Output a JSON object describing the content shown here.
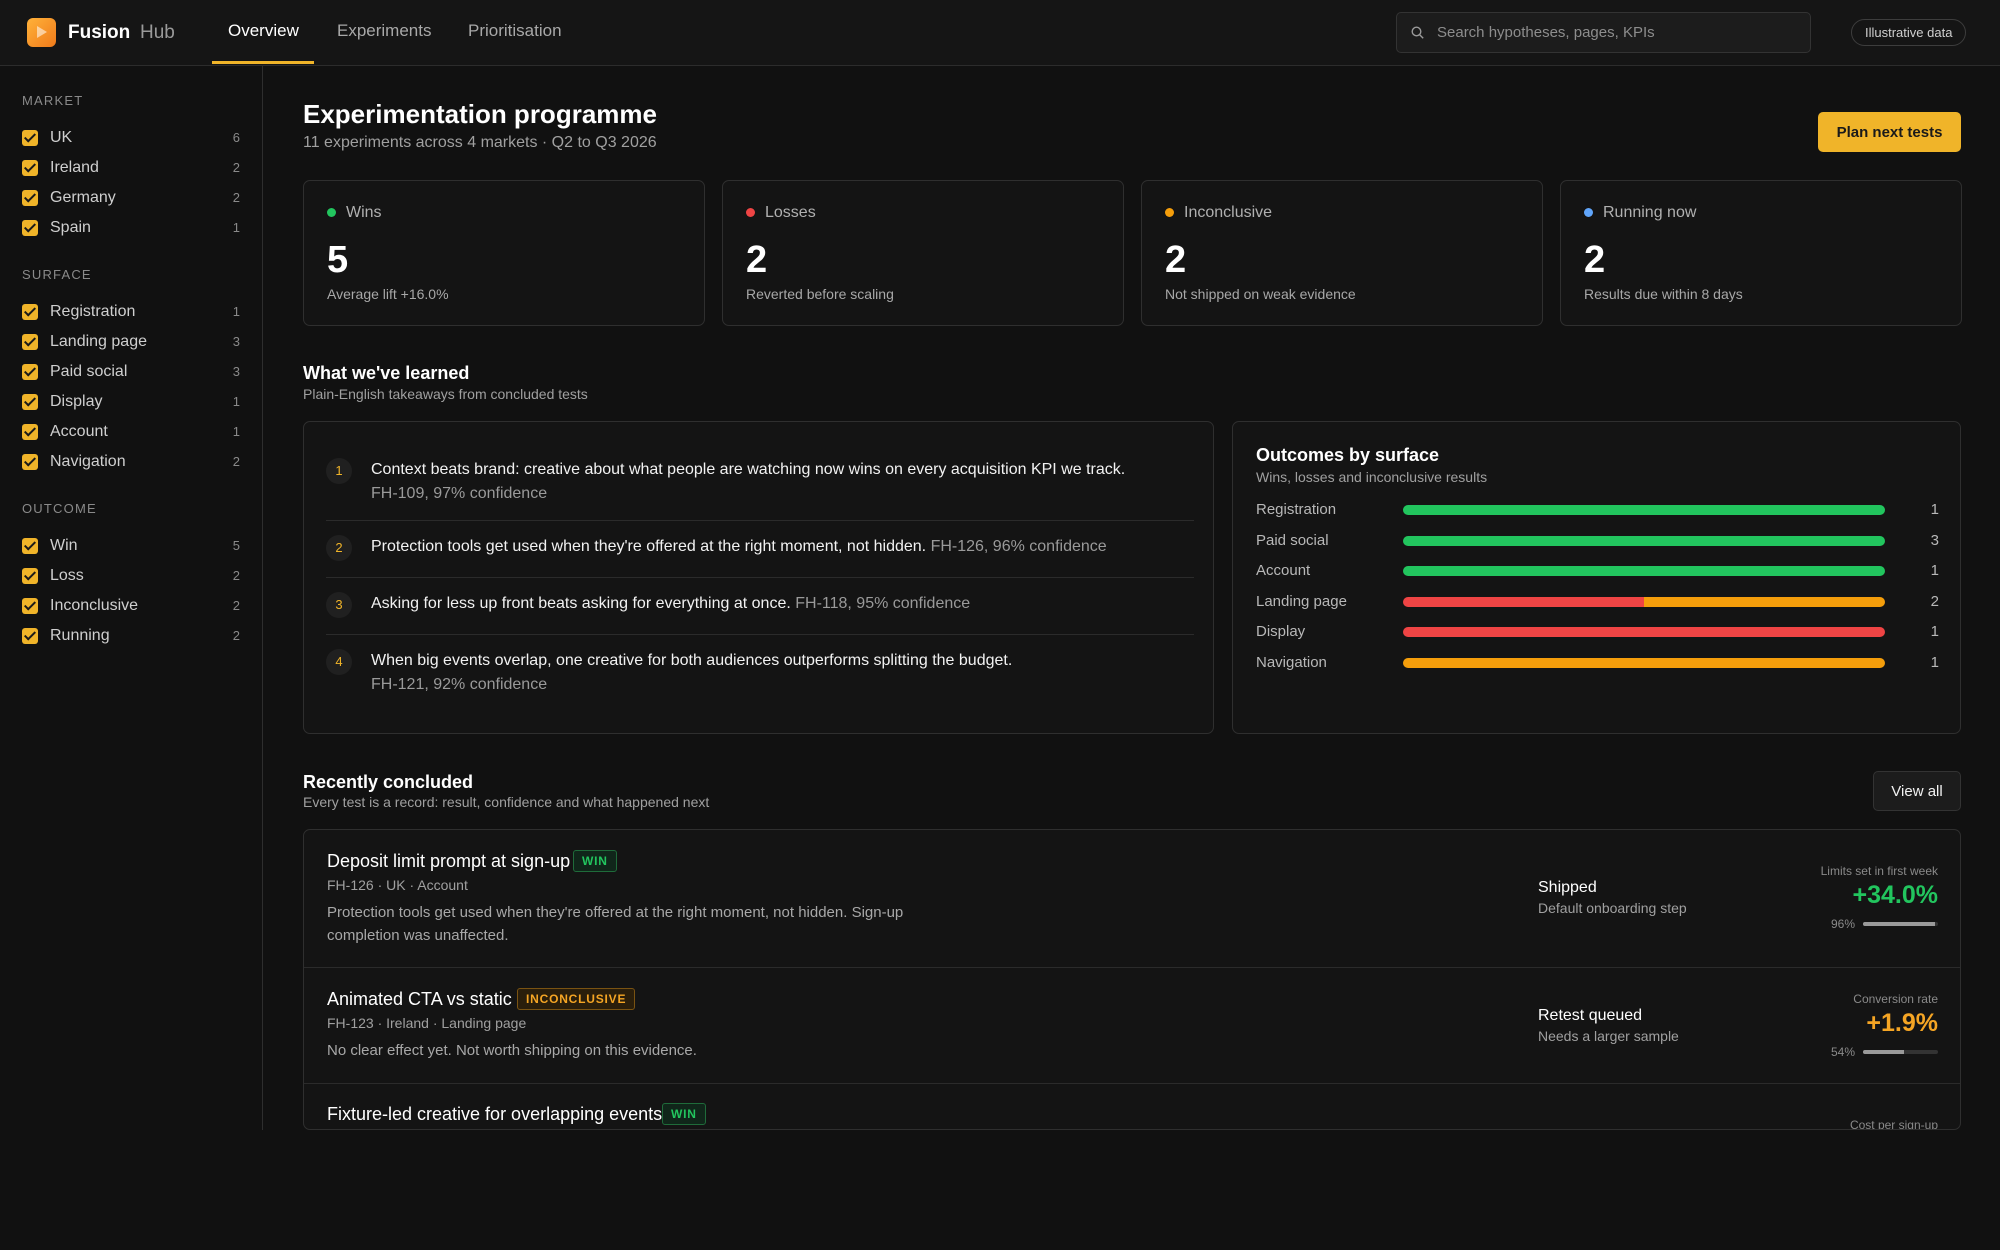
{
  "header": {
    "brand": "Fusion",
    "brand_sub": "Hub",
    "tabs": [
      {
        "label": "Overview",
        "active": true
      },
      {
        "label": "Experiments",
        "active": false
      },
      {
        "label": "Prioritisation",
        "active": false
      }
    ],
    "search": {
      "placeholder": "Search hypotheses, pages, KPIs",
      "value": ""
    },
    "chip": "Illustrative data"
  },
  "sidebar": {
    "groups": [
      {
        "title": "MARKET",
        "items": [
          {
            "label": "UK",
            "count": "6",
            "checked": true
          },
          {
            "label": "Ireland",
            "count": "2",
            "checked": true
          },
          {
            "label": "Germany",
            "count": "2",
            "checked": true
          },
          {
            "label": "Spain",
            "count": "1",
            "checked": true
          }
        ]
      },
      {
        "title": "SURFACE",
        "items": [
          {
            "label": "Registration",
            "count": "1",
            "checked": true
          },
          {
            "label": "Landing page",
            "count": "3",
            "checked": true
          },
          {
            "label": "Paid social",
            "count": "3",
            "checked": true
          },
          {
            "label": "Display",
            "count": "1",
            "checked": true
          },
          {
            "label": "Account",
            "count": "1",
            "checked": true
          },
          {
            "label": "Navigation",
            "count": "2",
            "checked": true
          }
        ]
      },
      {
        "title": "OUTCOME",
        "items": [
          {
            "label": "Win",
            "count": "5",
            "checked": true
          },
          {
            "label": "Loss",
            "count": "2",
            "checked": true
          },
          {
            "label": "Inconclusive",
            "count": "2",
            "checked": true
          },
          {
            "label": "Running",
            "count": "2",
            "checked": true
          }
        ]
      }
    ]
  },
  "main": {
    "title": "Experimentation programme",
    "subtitle": "11 experiments across 4 markets · Q2 to Q3 2026",
    "plan_button": "Plan next tests",
    "stats": [
      {
        "label": "Wins",
        "value": "5",
        "note": "Average lift +16.0%",
        "color": "#22c55e"
      },
      {
        "label": "Losses",
        "value": "2",
        "note": "Reverted before scaling",
        "color": "#ef4444"
      },
      {
        "label": "Inconclusive",
        "value": "2",
        "note": "Not shipped on weak evidence",
        "color": "#f59e0b"
      },
      {
        "label": "Running now",
        "value": "2",
        "note": "Results due within 8 days",
        "color": "#60a5fa"
      }
    ],
    "learned": {
      "title": "What we've learned",
      "subtitle": "Plain-English takeaways from concluded tests",
      "items": [
        {
          "num": "1",
          "text": "Context beats brand: creative about what people are watching now wins on every acquisition KPI we track.",
          "meta": "FH-109, 97% confidence"
        },
        {
          "num": "2",
          "text": "Protection tools get used when they're offered at the right moment, not hidden.",
          "meta": "FH-126, 96% confidence"
        },
        {
          "num": "3",
          "text": "Asking for less up front beats asking for everything at once.",
          "meta": "FH-118, 95% confidence"
        },
        {
          "num": "4",
          "text": "When big events overlap, one creative for both audiences outperforms splitting the budget.",
          "meta": "FH-121, 92% confidence"
        }
      ]
    },
    "outcomes": {
      "title": "Outcomes by surface",
      "subtitle": "Wins, losses and inconclusive results",
      "colors": {
        "win": "#22c55e",
        "loss": "#ef4444",
        "inconclusive": "#f59e0b"
      },
      "rows": [
        {
          "label": "Registration",
          "win": 1,
          "loss": 0,
          "inconclusive": 0,
          "total": "1"
        },
        {
          "label": "Paid social",
          "win": 3,
          "loss": 0,
          "inconclusive": 0,
          "total": "3"
        },
        {
          "label": "Account",
          "win": 1,
          "loss": 0,
          "inconclusive": 0,
          "total": "1"
        },
        {
          "label": "Landing page",
          "win": 0,
          "loss": 1,
          "inconclusive": 1,
          "total": "2"
        },
        {
          "label": "Display",
          "win": 0,
          "loss": 1,
          "inconclusive": 0,
          "total": "1"
        },
        {
          "label": "Navigation",
          "win": 0,
          "loss": 0,
          "inconclusive": 1,
          "total": "1"
        }
      ]
    },
    "recent": {
      "title": "Recently concluded",
      "subtitle": "Every test is a record: result, confidence and what happened next",
      "view_all": "View all",
      "items": [
        {
          "title": "Deposit limit prompt at sign-up",
          "badge": "WIN",
          "meta": "FH-126 · UK · Account",
          "desc": "Protection tools get used when they're offered at the right moment, not hidden. Sign-up completion was unaffected.",
          "status": "Shipped",
          "status_sub": "Default onboarding step",
          "kpi_label": "Limits set in first week",
          "kpi_value": "+34.0%",
          "kpi_color": "#22c55e",
          "confidence": "96%",
          "confidence_value": 0.96
        },
        {
          "title": "Animated CTA vs static",
          "badge": "INCONCLUSIVE",
          "meta": "FH-123 · Ireland · Landing page",
          "desc": "No clear effect yet. Not worth shipping on this evidence.",
          "status": "Retest queued",
          "status_sub": "Needs a larger sample",
          "kpi_label": "Conversion rate",
          "kpi_value": "+1.9%",
          "kpi_color": "#f5a524",
          "confidence": "54%",
          "confidence_value": 0.54
        },
        {
          "title": "Fixture-led creative for overlapping events",
          "badge": "WIN",
          "kpi_label": "Cost per sign-up"
        }
      ]
    }
  }
}
